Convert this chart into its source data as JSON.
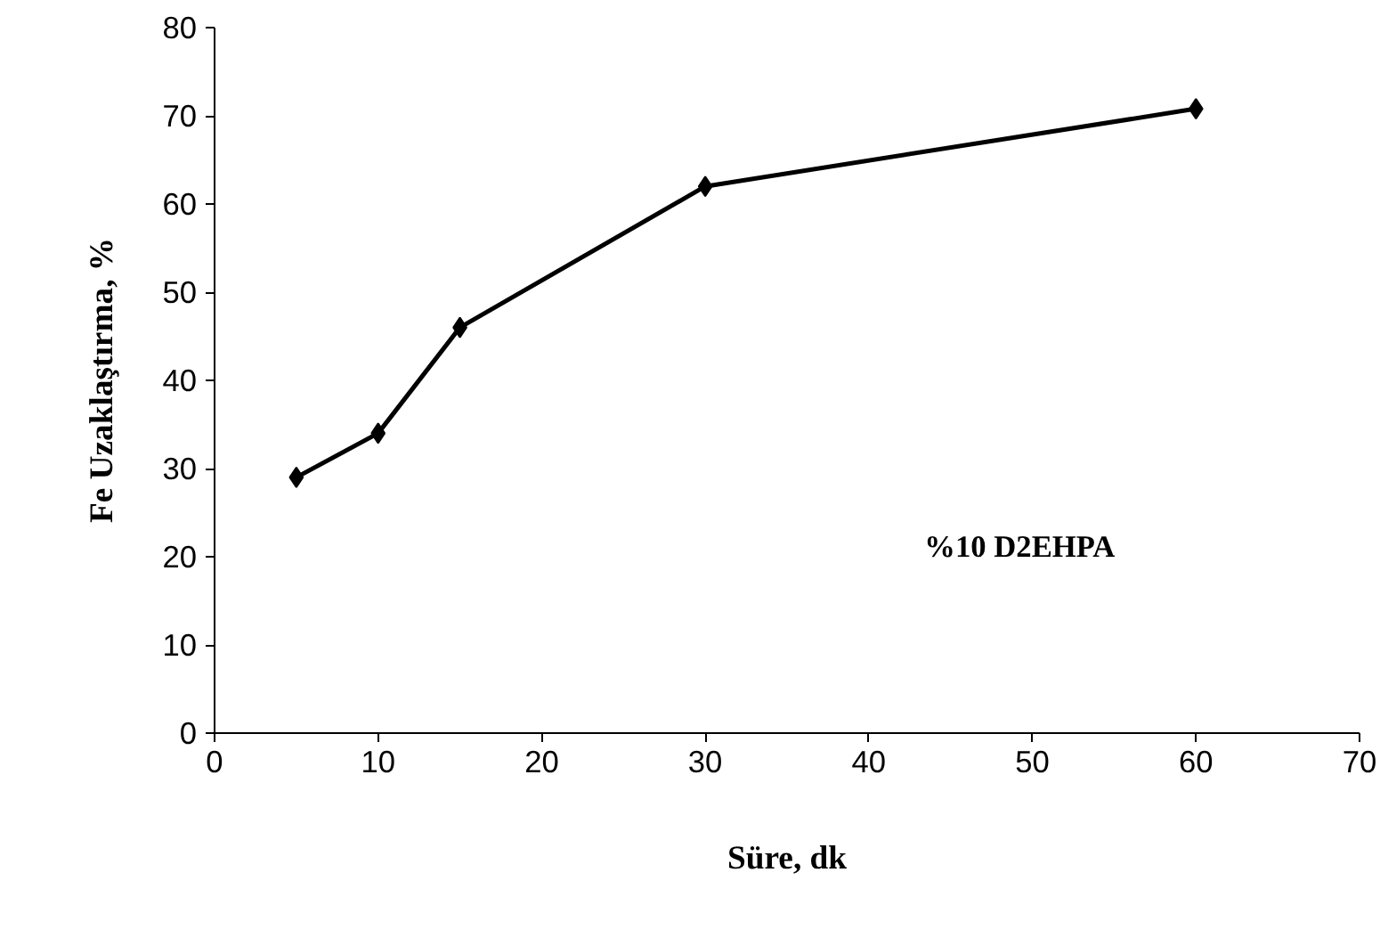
{
  "chart_data": {
    "type": "line",
    "xlabel": "Süre, dk",
    "ylabel": "Fe Uzaklaştırma, %",
    "x": [
      5,
      10,
      15,
      30,
      60
    ],
    "series": [
      {
        "color": "#000000",
        "values": [
          29,
          34,
          46,
          62,
          70.8
        ]
      }
    ],
    "xlim": [
      0,
      70
    ],
    "xticks": [
      0,
      10,
      20,
      30,
      40,
      50,
      60,
      70
    ],
    "ylim": [
      0,
      80
    ],
    "yticks": [
      0,
      10,
      20,
      30,
      40,
      50,
      60,
      70,
      80
    ],
    "grid": false,
    "marker": "diamond",
    "line_style": "solid",
    "annotations": [
      "%10 D2EHPA"
    ]
  }
}
